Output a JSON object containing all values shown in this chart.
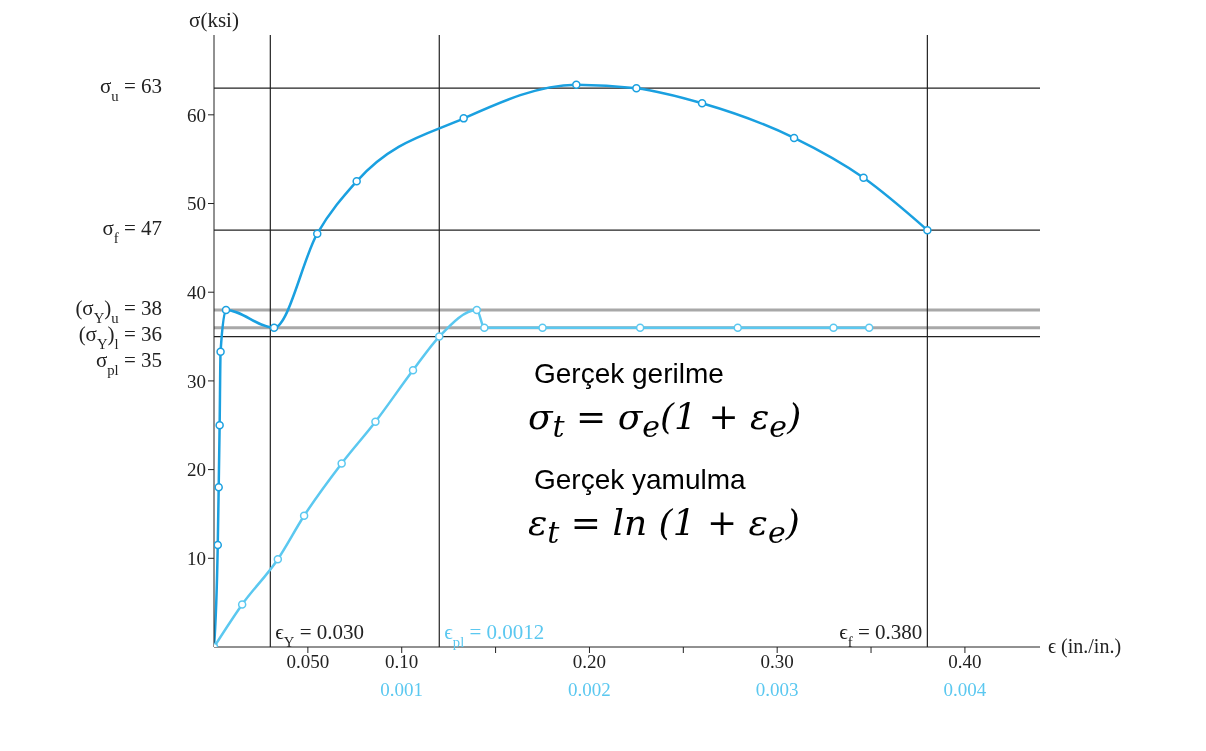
{
  "chart_data": {
    "type": "line",
    "ylabel": "σ(ksi)",
    "xlabel": "ϵ (in./in.)",
    "xlim": [
      0,
      0.44
    ],
    "xticks": [
      {
        "value": 0.05,
        "label": "0.050"
      },
      {
        "value": 0.1,
        "label": "0.10"
      },
      {
        "value": 0.15,
        "label": null
      },
      {
        "value": 0.2,
        "label": "0.20"
      },
      {
        "value": 0.25,
        "label": null
      },
      {
        "value": 0.3,
        "label": "0.30"
      },
      {
        "value": 0.35,
        "label": null
      },
      {
        "value": 0.4,
        "label": "0.40"
      }
    ],
    "x2lim": [
      0,
      0.0044
    ],
    "x2ticks": [
      0.001,
      0.002,
      0.003,
      0.004
    ],
    "ylim": [
      0,
      69
    ],
    "yticks": [
      10,
      20,
      30,
      40,
      50,
      60
    ],
    "marker": "circle",
    "grid": false,
    "legend": false,
    "series": [
      {
        "color": "#1aa0e0",
        "x": [
          0,
          0.002,
          0.0025,
          0.003,
          0.0035,
          0.0064,
          0.032,
          0.055,
          0.076,
          0.133,
          0.193,
          0.225,
          0.26,
          0.309,
          0.346,
          0.38
        ],
        "values": [
          0,
          11.5,
          18,
          25,
          33.3,
          38,
          36,
          46.6,
          52.5,
          59.6,
          63.4,
          63,
          61.3,
          57.4,
          52.9,
          47
        ]
      },
      {
        "color": "#5bc8f0",
        "axis": "x2",
        "x": [
          0,
          0.00015,
          0.00034,
          0.00048,
          0.00068,
          0.00086,
          0.00106,
          0.0012,
          0.0014,
          0.00144,
          0.00175,
          0.00227,
          0.00279,
          0.0033,
          0.00349
        ],
        "values": [
          0,
          4.8,
          9.9,
          14.8,
          20.7,
          25.4,
          31.2,
          35,
          38,
          36,
          36,
          36,
          36,
          36,
          36
        ]
      }
    ],
    "ref_lines": [
      {
        "axis": "y",
        "value": 63,
        "label": "σ$_{u}$ = 63",
        "color": "#222222"
      },
      {
        "axis": "y",
        "value": 47,
        "label": "σ$_{f}$ = 47",
        "color": "#222222"
      },
      {
        "axis": "y",
        "value": 38,
        "label": "(σ$_{Y}$)$_{u}$ = 38",
        "color": "#a8a8a8"
      },
      {
        "axis": "y",
        "value": 36,
        "label": "(σ$_{Y}$)$_{l}$ = 36",
        "color": "#a8a8a8"
      },
      {
        "axis": "y",
        "value": 35,
        "label": "σ$_{pl}$ = 35",
        "color": "#222222"
      },
      {
        "axis": "x",
        "value": 0.03,
        "label": "ϵ$_{Y}$ = 0.030",
        "color": "#222222"
      },
      {
        "axis": "x2",
        "value": 0.0012,
        "label": "ϵ$_{pl}$ = 0.0012",
        "color": "#222222"
      },
      {
        "axis": "x",
        "value": 0.38,
        "label": "ϵ$_{f}$ = 0.380",
        "color": "#222222"
      }
    ],
    "annotations": [
      "Gerçek gerilme",
      "σ$_{t}$ = σ$_{e}$(1 + ε$_{e}$)",
      "Gerçek yamulma",
      "ε$_{t}$ = ln (1 + ε$_{e}$)"
    ]
  }
}
